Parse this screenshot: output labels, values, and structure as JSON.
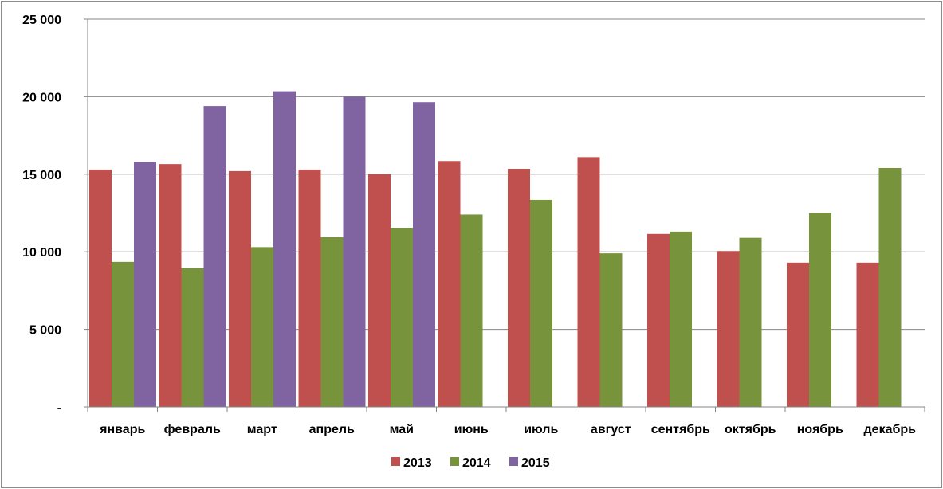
{
  "chart_data": {
    "type": "bar",
    "categories": [
      "январь",
      "февраль",
      "март",
      "апрель",
      "май",
      "июнь",
      "июль",
      "август",
      "сентябрь",
      "октябрь",
      "ноябрь",
      "декабрь"
    ],
    "series": [
      {
        "name": "2013",
        "color": "#C0504D",
        "values": [
          15300,
          15650,
          15200,
          15300,
          15000,
          15850,
          15350,
          16100,
          11150,
          10050,
          9300,
          9300
        ]
      },
      {
        "name": "2014",
        "color": "#77933C",
        "values": [
          9350,
          8950,
          10300,
          10950,
          11550,
          12400,
          13350,
          9900,
          11300,
          10900,
          12500,
          15400
        ]
      },
      {
        "name": "2015",
        "color": "#8064A2",
        "values": [
          15800,
          19400,
          20350,
          20000,
          19650,
          null,
          null,
          null,
          null,
          null,
          null,
          null
        ]
      }
    ],
    "yticks": [
      "-",
      "5 000",
      "10 000",
      "15 000",
      "20 000",
      "25 000"
    ],
    "ylim": [
      0,
      25000
    ],
    "grid": true,
    "legend": "bottom-center",
    "title": "",
    "xlabel": "",
    "ylabel": ""
  }
}
